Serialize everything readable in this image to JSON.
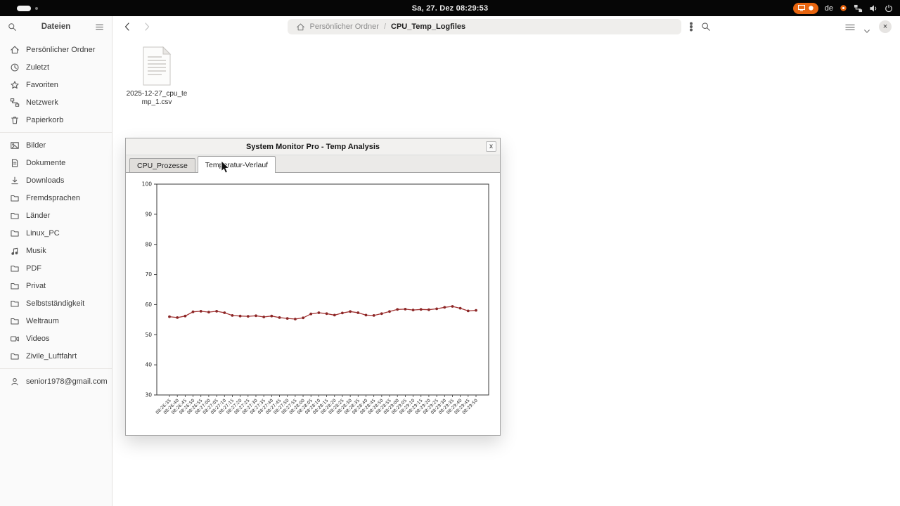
{
  "topbar": {
    "clock": "Sa, 27. Dez 08:29:53",
    "keyboard_layout": "de",
    "icons": [
      "workspace-pill",
      "screencast-indicator",
      "status-indicator-icon",
      "network-icon",
      "volume-icon",
      "power-icon"
    ]
  },
  "files_app": {
    "sidebar": {
      "title": "Dateien",
      "header_icons": [
        "search-icon",
        "menu-icon"
      ],
      "sections": [
        {
          "items": [
            {
              "icon": "home",
              "label": "Persönlicher Ordner"
            },
            {
              "icon": "clock",
              "label": "Zuletzt"
            },
            {
              "icon": "star",
              "label": "Favoriten"
            },
            {
              "icon": "network",
              "label": "Netzwerk"
            },
            {
              "icon": "trash",
              "label": "Papierkorb"
            }
          ]
        },
        {
          "items": [
            {
              "icon": "image",
              "label": "Bilder"
            },
            {
              "icon": "document",
              "label": "Dokumente"
            },
            {
              "icon": "download",
              "label": "Downloads"
            },
            {
              "icon": "folder",
              "label": "Fremdsprachen"
            },
            {
              "icon": "folder",
              "label": "Länder"
            },
            {
              "icon": "folder",
              "label": "Linux_PC"
            },
            {
              "icon": "music",
              "label": "Musik"
            },
            {
              "icon": "folder",
              "label": "PDF"
            },
            {
              "icon": "folder",
              "label": "Privat"
            },
            {
              "icon": "folder",
              "label": "Selbstständigkeit"
            },
            {
              "icon": "folder",
              "label": "Weltraum"
            },
            {
              "icon": "video",
              "label": "Videos"
            },
            {
              "icon": "folder",
              "label": "Zivile_Luftfahrt"
            }
          ]
        },
        {
          "items": [
            {
              "icon": "person",
              "label": "senior1978@gmail.com"
            }
          ]
        }
      ]
    },
    "toolbar": {
      "breadcrumb": {
        "root": "Persönlicher Ordner",
        "separator": "/",
        "current": "CPU_Temp_Logfiles"
      },
      "icons": [
        "back-icon",
        "forward-icon",
        "home-icon",
        "kebab-menu-icon",
        "search-icon",
        "view-list-icon",
        "chevron-down-icon",
        "close-icon"
      ],
      "close_glyph": "×"
    },
    "file": {
      "name": "2025-12-27_cpu_temp_1.csv"
    }
  },
  "monitor_window": {
    "title": "System Monitor Pro - Temp Analysis",
    "close_glyph": "x",
    "tabs": [
      {
        "label": "CPU_Prozesse",
        "active": false
      },
      {
        "label": "Temperatur-Verlauf",
        "active": true
      }
    ]
  },
  "chart_data": {
    "type": "line",
    "title": "",
    "xlabel": "",
    "ylabel": "",
    "ylim": [
      30,
      100
    ],
    "yticks": [
      30,
      40,
      50,
      60,
      70,
      80,
      90,
      100
    ],
    "grid": false,
    "legend": false,
    "line_color": "#a33434",
    "marker_color": "#8b2727",
    "x": [
      "08:26:35",
      "08:26:40",
      "08:26:45",
      "08:26:50",
      "08:26:55",
      "08:27:00",
      "08:27:05",
      "08:27:10",
      "08:27:15",
      "08:27:20",
      "08:27:25",
      "08:27:30",
      "08:27:35",
      "08:27:40",
      "08:27:45",
      "08:27:50",
      "08:27:55",
      "08:28:00",
      "08:28:05",
      "08:28:10",
      "08:28:15",
      "08:28:20",
      "08:28:25",
      "08:28:30",
      "08:28:35",
      "08:28:40",
      "08:28:45",
      "08:28:50",
      "08:28:55",
      "08:29:00",
      "08:29:05",
      "08:29:10",
      "08:29:15",
      "08:29:20",
      "08:29:25",
      "08:29:30",
      "08:29:35",
      "08:29:40",
      "08:29:45",
      "08:29:50"
    ],
    "values": [
      56.0,
      55.7,
      56.2,
      57.6,
      57.8,
      57.5,
      57.8,
      57.3,
      56.4,
      56.2,
      56.1,
      56.3,
      55.9,
      56.2,
      55.7,
      55.4,
      55.2,
      55.6,
      56.9,
      57.3,
      57.0,
      56.5,
      57.2,
      57.7,
      57.3,
      56.5,
      56.4,
      57.0,
      57.7,
      58.4,
      58.5,
      58.2,
      58.4,
      58.3,
      58.6,
      59.1,
      59.4,
      58.8,
      57.9,
      58.1
    ]
  }
}
